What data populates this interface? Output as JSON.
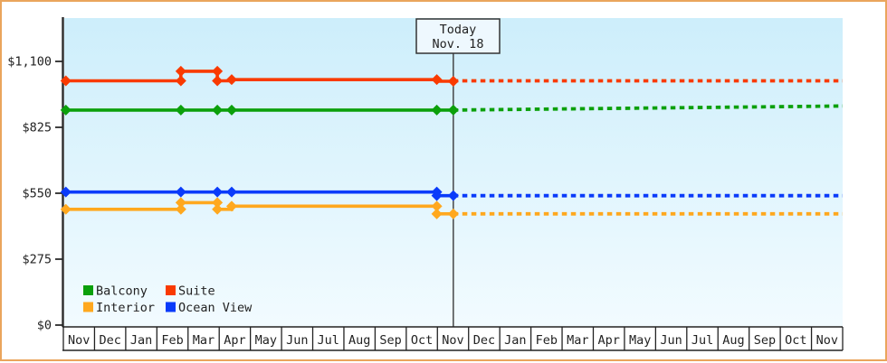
{
  "window": {
    "border_color": "#eaa55c",
    "background_color": "#ffffff"
  },
  "today_annotation": {
    "line1": "Today",
    "line2": "Nov. 18"
  },
  "legend": [
    {
      "label": "Balcony",
      "color": "#0ba00b"
    },
    {
      "label": "Suite",
      "color": "#f93a00"
    },
    {
      "label": "Interior",
      "color": "#ffa81e"
    },
    {
      "label": "Ocean View",
      "color": "#0a3bfa"
    }
  ],
  "chart_data": {
    "type": "line",
    "description": "Cruise cabin price history by category with dashed projection after today (Nov. 18)",
    "grid": false,
    "legend_position": "bottom-left",
    "plot_background": {
      "top": "#cdeefb",
      "bottom": "#f2fbff"
    },
    "axis_color": "#2b2b2b",
    "today_line_color": "#3a3a3a",
    "today_x_month": 12.51,
    "xlim_months": [
      0,
      25
    ],
    "ylim": [
      0,
      1281
    ],
    "y_ticks": [
      {
        "label": "$1,100",
        "value": 1100
      },
      {
        "label": "$825",
        "value": 825
      },
      {
        "label": "$550",
        "value": 550
      },
      {
        "label": "$275",
        "value": 275
      },
      {
        "label": "$0",
        "value": 0
      }
    ],
    "x_months": [
      "Nov",
      "Dec",
      "Jan",
      "Feb",
      "Mar",
      "Apr",
      "May",
      "Jun",
      "Jul",
      "Aug",
      "Sep",
      "Oct",
      "Nov",
      "Dec",
      "Jan",
      "Feb",
      "Mar",
      "Apr",
      "May",
      "Jun",
      "Jul",
      "Aug",
      "Sep",
      "Oct",
      "Nov"
    ],
    "series": [
      {
        "name": "Suite",
        "color": "#f93a00",
        "solid": [
          [
            0,
            1019
          ],
          [
            3.77,
            1019
          ],
          [
            3.77,
            1059
          ],
          [
            4.94,
            1059
          ],
          [
            4.94,
            1019
          ],
          [
            5.4,
            1019
          ],
          [
            5.4,
            1024
          ],
          [
            11.98,
            1024
          ],
          [
            11.98,
            1017
          ],
          [
            12.51,
            1017
          ]
        ],
        "markers": [
          [
            0.08,
            1019
          ],
          [
            3.77,
            1019
          ],
          [
            3.77,
            1059
          ],
          [
            4.94,
            1059
          ],
          [
            4.94,
            1019
          ],
          [
            5.4,
            1024
          ],
          [
            11.98,
            1024
          ],
          [
            12.51,
            1017
          ]
        ],
        "dashed": [
          [
            12.51,
            1019
          ],
          [
            25,
            1019
          ]
        ]
      },
      {
        "name": "Balcony",
        "color": "#0ba00b",
        "solid": [
          [
            0,
            897
          ],
          [
            12.51,
            897
          ]
        ],
        "markers": [
          [
            0.08,
            897
          ],
          [
            3.77,
            897
          ],
          [
            4.94,
            897
          ],
          [
            5.4,
            897
          ],
          [
            11.98,
            897
          ],
          [
            12.51,
            897
          ]
        ],
        "dashed": [
          [
            12.51,
            897
          ],
          [
            25,
            914
          ]
        ]
      },
      {
        "name": "Ocean View",
        "color": "#0a3bfa",
        "solid": [
          [
            0,
            555
          ],
          [
            11.98,
            555
          ],
          [
            11.98,
            540
          ],
          [
            12.51,
            540
          ]
        ],
        "markers": [
          [
            0.08,
            555
          ],
          [
            3.77,
            555
          ],
          [
            4.94,
            555
          ],
          [
            5.4,
            555
          ],
          [
            11.98,
            555
          ],
          [
            11.98,
            540
          ],
          [
            12.51,
            540
          ]
        ],
        "dashed": [
          [
            12.51,
            540
          ],
          [
            25,
            540
          ]
        ]
      },
      {
        "name": "Interior",
        "color": "#ffa81e",
        "solid": [
          [
            0,
            483
          ],
          [
            3.77,
            483
          ],
          [
            3.77,
            511
          ],
          [
            4.94,
            511
          ],
          [
            4.94,
            483
          ],
          [
            5.4,
            483
          ],
          [
            5.4,
            496
          ],
          [
            11.98,
            496
          ],
          [
            11.98,
            464
          ],
          [
            12.51,
            464
          ]
        ],
        "markers": [
          [
            0.08,
            483
          ],
          [
            3.77,
            483
          ],
          [
            3.77,
            511
          ],
          [
            4.94,
            511
          ],
          [
            4.94,
            483
          ],
          [
            5.4,
            496
          ],
          [
            11.98,
            496
          ],
          [
            11.98,
            464
          ],
          [
            12.51,
            464
          ]
        ],
        "dashed": [
          [
            12.51,
            464
          ],
          [
            25,
            464
          ]
        ]
      }
    ]
  }
}
